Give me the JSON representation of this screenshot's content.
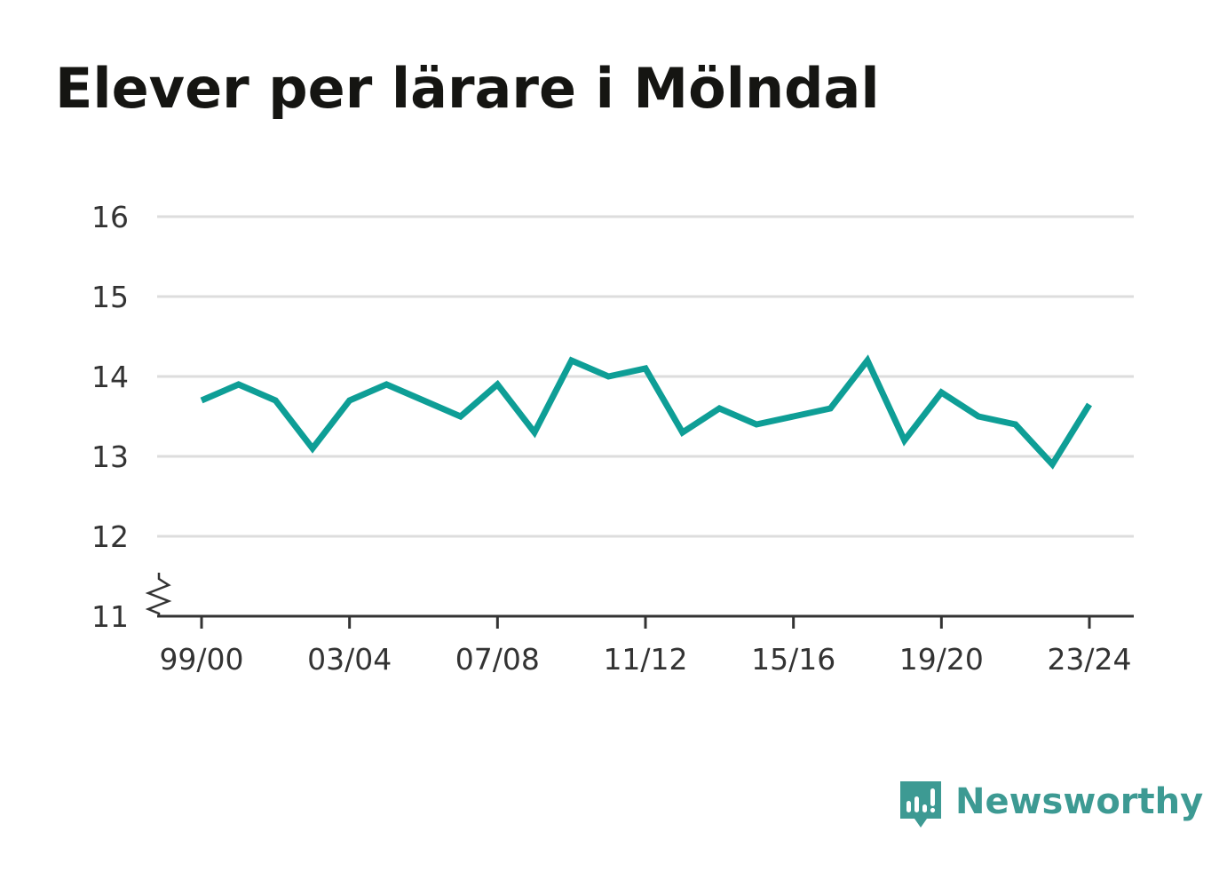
{
  "title": "Elever per lärare i Mölndal",
  "brand": {
    "name": "Newsworthy",
    "icon": "newsworthy-logo-icon",
    "color": "#3d9a93"
  },
  "colors": {
    "line": "#0e9e96",
    "grid": "#dddddd",
    "axis": "#333333",
    "text": "#333333"
  },
  "chart_data": {
    "type": "line",
    "title": "Elever per lärare i Mölndal",
    "xlabel": "",
    "ylabel": "",
    "ylim": [
      11,
      16
    ],
    "y_ticks": [
      11,
      12,
      13,
      14,
      15,
      16
    ],
    "y_axis_break": true,
    "grid": true,
    "x": [
      "99/00",
      "00/01",
      "01/02",
      "02/03",
      "03/04",
      "04/05",
      "05/06",
      "06/07",
      "07/08",
      "08/09",
      "09/10",
      "10/11",
      "11/12",
      "12/13",
      "13/14",
      "14/15",
      "15/16",
      "16/17",
      "17/18",
      "18/19",
      "19/20",
      "20/21",
      "21/22",
      "22/23",
      "23/24"
    ],
    "x_tick_labels": [
      "99/00",
      "03/04",
      "07/08",
      "11/12",
      "15/16",
      "19/20",
      "23/24"
    ],
    "series": [
      {
        "color": "#0e9e96",
        "values": [
          13.7,
          13.9,
          13.7,
          13.1,
          13.7,
          13.9,
          13.7,
          13.5,
          13.9,
          13.3,
          14.2,
          14.0,
          14.1,
          13.3,
          13.6,
          13.4,
          13.5,
          13.6,
          14.2,
          13.2,
          13.8,
          13.5,
          13.4,
          12.9,
          13.65
        ]
      }
    ]
  }
}
